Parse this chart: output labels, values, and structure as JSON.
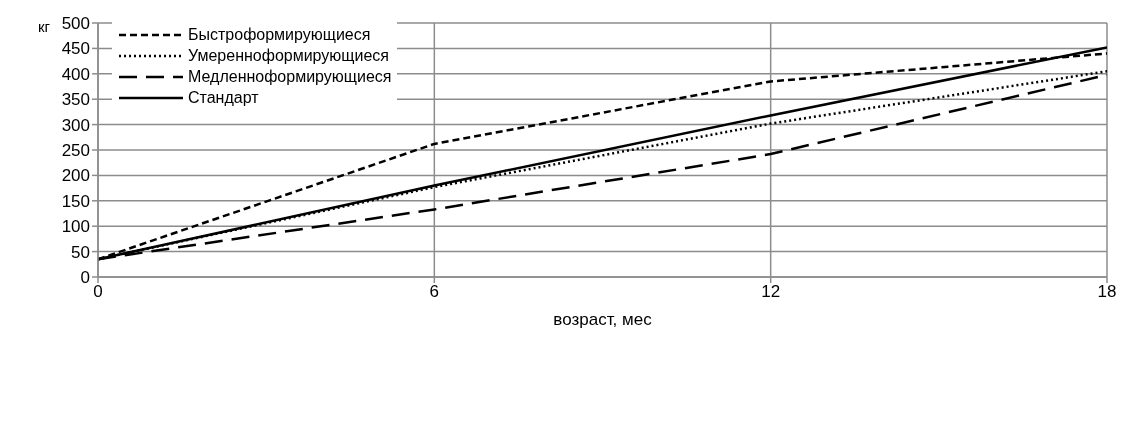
{
  "chart_data": {
    "type": "line",
    "xlabel": "возраст, мес",
    "ylabel": "кг",
    "x": [
      0,
      6,
      12,
      18
    ],
    "series": [
      {
        "name": "Быстроформирующиеся",
        "color": "#000000",
        "line_style": "dashed",
        "values": [
          35,
          262,
          385,
          440
        ]
      },
      {
        "name": "Умеренноформирующиеся",
        "color": "#000000",
        "line_style": "dotted",
        "values": [
          35,
          177,
          302,
          405
        ]
      },
      {
        "name": "Медленноформирующиеся",
        "color": "#000000",
        "line_style": "dashed",
        "values": [
          35,
          133,
          242,
          398
        ]
      },
      {
        "name": "Стандарт",
        "color": "#000000",
        "line_style": "solid",
        "values": [
          35,
          180,
          318,
          452
        ]
      }
    ],
    "xlim": [
      0,
      18
    ],
    "xticks": [
      0,
      6,
      12,
      18
    ],
    "ylim": [
      0,
      500
    ],
    "yticks": [
      0,
      50,
      100,
      150,
      200,
      250,
      300,
      350,
      400,
      450,
      500
    ],
    "grid": true,
    "legend": "top left",
    "marker": "none"
  }
}
